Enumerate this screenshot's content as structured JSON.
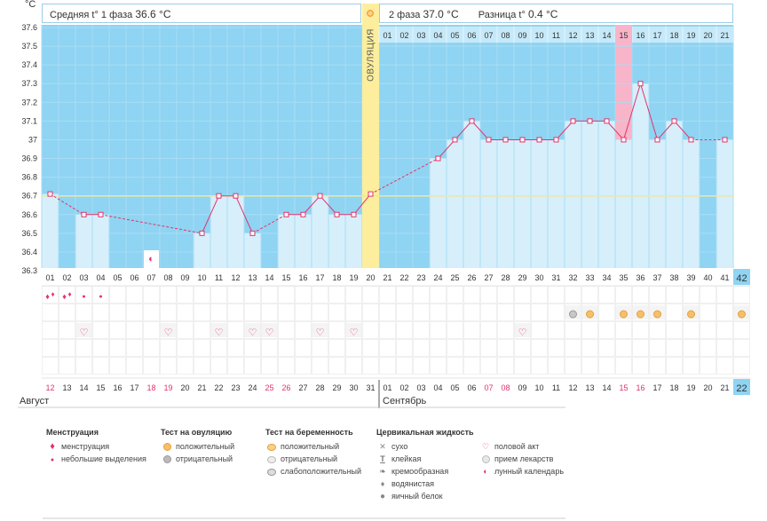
{
  "header": {
    "y_unit": "°C",
    "phase1_label": "Средняя t° 1 фаза",
    "phase1_value": "36.6 °C",
    "phase2_label": "2 фаза",
    "phase2_value": "37.0 °C",
    "diff_label": "Разница t°",
    "diff_value": "0.4 °C",
    "ovulation_label": "ОВУЛЯЦИЯ"
  },
  "colors": {
    "grid_bg": "#8fd4f2",
    "bar_fill": "#d6effb",
    "line": "#e2336b",
    "coverline": "#f2e69a",
    "ovulation": "#fcee9c",
    "highlight": "#f8b4c8",
    "accent_cell": "#8fd4f2"
  },
  "chart_data": {
    "type": "line",
    "title": "",
    "ylabel": "°C",
    "ylim": [
      36.3,
      37.6
    ],
    "yticks": [
      "36.3",
      "36.4",
      "36.5",
      "36.6",
      "36.7",
      "36.8",
      "36.9",
      "37",
      "37.1",
      "37.2",
      "37.3",
      "37.4",
      "37.5",
      "37.6"
    ],
    "coverline": 36.7,
    "ovulation_day": 20,
    "highlight_day": 35,
    "top_days": [
      "01",
      "02",
      "03",
      "04",
      "05",
      "06",
      "07",
      "08",
      "09",
      "10",
      "11",
      "12",
      "13",
      "14",
      "15",
      "16",
      "17",
      "18",
      "19",
      "20",
      "21"
    ],
    "cycle_days": [
      "01",
      "02",
      "03",
      "04",
      "05",
      "06",
      "07",
      "08",
      "09",
      "10",
      "11",
      "12",
      "13",
      "14",
      "15",
      "16",
      "17",
      "18",
      "19",
      "20",
      "21",
      "22",
      "23",
      "24",
      "25",
      "26",
      "27",
      "28",
      "29",
      "30",
      "31",
      "32",
      "33",
      "34",
      "35",
      "36",
      "37",
      "38",
      "39",
      "40",
      "41"
    ],
    "cycle_total": "42",
    "dates": [
      "12",
      "13",
      "14",
      "15",
      "16",
      "17",
      "18",
      "19",
      "20",
      "21",
      "22",
      "23",
      "24",
      "25",
      "26",
      "27",
      "28",
      "29",
      "30",
      "31",
      "01",
      "02",
      "03",
      "04",
      "05",
      "06",
      "07",
      "08",
      "09",
      "10",
      "11",
      "12",
      "13",
      "14",
      "15",
      "16",
      "17",
      "18",
      "19",
      "20",
      "21"
    ],
    "date_total": "22",
    "red_date_days": [
      1,
      7,
      8,
      14,
      15,
      27,
      28,
      35,
      36
    ],
    "temperatures": [
      36.71,
      null,
      36.6,
      36.6,
      null,
      null,
      null,
      null,
      null,
      36.5,
      36.7,
      36.7,
      36.5,
      null,
      36.6,
      36.6,
      36.7,
      36.6,
      36.6,
      36.71,
      null,
      null,
      null,
      36.9,
      37.0,
      37.1,
      37.0,
      37.0,
      37.0,
      37.0,
      37.0,
      37.1,
      37.1,
      37.1,
      37.0,
      37.3,
      37.0,
      37.1,
      37.0,
      null,
      37.0
    ],
    "moon_day": 7,
    "menstruation": [
      {
        "day": 1,
        "type": "heavy"
      },
      {
        "day": 2,
        "type": "heavy"
      },
      {
        "day": 3,
        "type": "light"
      },
      {
        "day": 4,
        "type": "light"
      }
    ],
    "intercourse_days": [
      3,
      8,
      11,
      13,
      14,
      17,
      19,
      29
    ],
    "ovulation_tests": [
      {
        "day": 32,
        "result": "negative"
      },
      {
        "day": 33,
        "result": "positive"
      },
      {
        "day": 35,
        "result": "positive"
      },
      {
        "day": 36,
        "result": "positive"
      },
      {
        "day": 37,
        "result": "positive"
      },
      {
        "day": 39,
        "result": "positive"
      },
      {
        "day": 42,
        "result": "positive"
      }
    ]
  },
  "months": {
    "first": "Август",
    "second": "Сентябрь"
  },
  "legend": {
    "menstruation": {
      "title": "Менструация",
      "items": [
        {
          "icon": "blood-drop-icon",
          "label": "менструация"
        },
        {
          "icon": "small-drop-icon",
          "label": "небольшие выделения"
        }
      ]
    },
    "ovulation_test": {
      "title": "Тест на овуляцию",
      "items": [
        {
          "icon": "positive-test-icon",
          "label": "положительный"
        },
        {
          "icon": "negative-test-icon",
          "label": "отрицательный"
        }
      ]
    },
    "pregnancy_test": {
      "title": "Тест на беременность",
      "items": [
        {
          "icon": "positive-test-icon",
          "label": "положительный"
        },
        {
          "icon": "negative-test-icon",
          "label": "отрицательный"
        },
        {
          "icon": "weak-test-icon",
          "label": "слабоположительный"
        }
      ]
    },
    "cervical_fluid": {
      "title": "Цервикальная жидкость",
      "items": [
        {
          "icon": "cross-icon",
          "label": "сухо"
        },
        {
          "icon": "t-icon",
          "label": "клейкая"
        },
        {
          "icon": "curl-icon",
          "label": "кремообразная"
        },
        {
          "icon": "drop-icon",
          "label": "водянистая"
        },
        {
          "icon": "egg-icon",
          "label": "яичный белок"
        }
      ]
    },
    "other": {
      "items": [
        {
          "icon": "heart-icon",
          "label": "половой акт"
        },
        {
          "icon": "pill-icon",
          "label": "прием лекарств"
        },
        {
          "icon": "moon-icon",
          "label": "лунный календарь"
        }
      ]
    }
  }
}
